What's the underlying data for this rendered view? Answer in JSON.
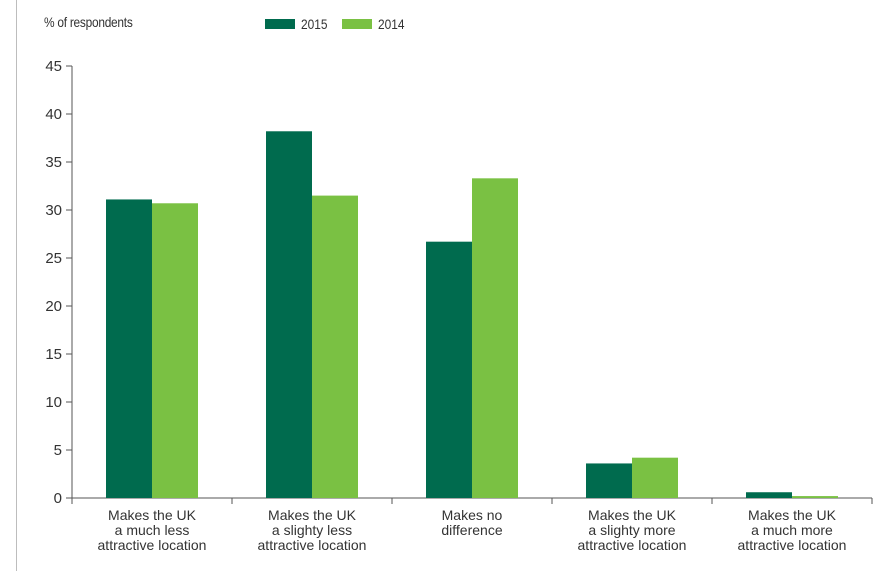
{
  "chart_data": {
    "type": "bar",
    "title": "",
    "xlabel": "",
    "ylabel": "% of respondents",
    "ylim": [
      0,
      45
    ],
    "yticks": [
      0,
      5,
      10,
      15,
      20,
      25,
      30,
      35,
      40,
      45
    ],
    "grid": false,
    "legend_position": "top",
    "categories": [
      [
        "Makes the UK",
        "a much less",
        "attractive location"
      ],
      [
        "Makes the UK",
        "a slighty less",
        "attractive location"
      ],
      [
        "Makes no",
        "difference"
      ],
      [
        "Makes the UK",
        "a slighty more",
        "attractive location"
      ],
      [
        "Makes the UK",
        "a much more",
        "attractive location"
      ]
    ],
    "series": [
      {
        "name": "2015",
        "color": "#006b4e",
        "values": [
          31.1,
          38.2,
          26.7,
          3.6,
          0.6
        ]
      },
      {
        "name": "2014",
        "color": "#7ac143",
        "values": [
          30.7,
          31.5,
          33.3,
          4.2,
          0.2
        ]
      }
    ]
  }
}
